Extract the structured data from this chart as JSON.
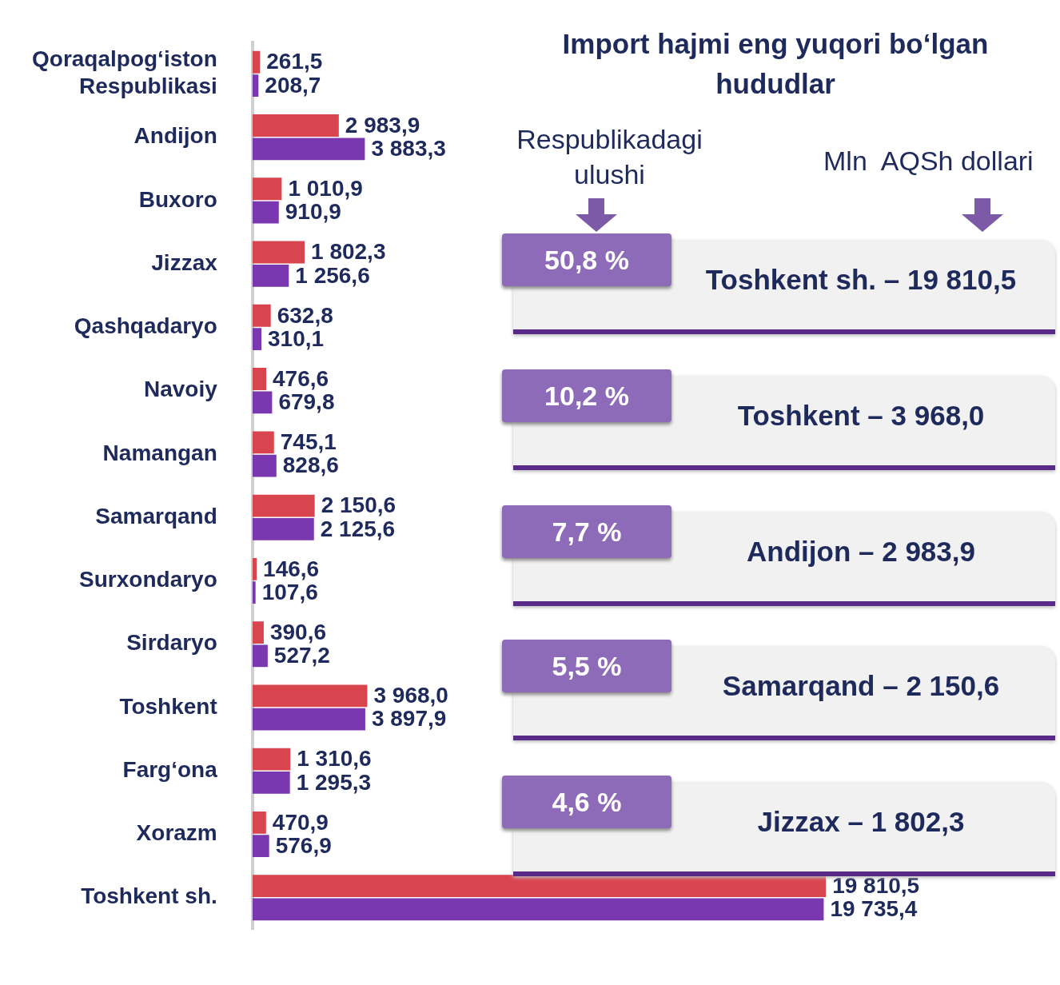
{
  "chart_data": {
    "type": "bar",
    "orientation": "horizontal",
    "title": "Import hajmi eng yuqori bo‘lgan hududlar",
    "categories": [
      "Qoraqalpog‘iston Respublikasi",
      "Andijon",
      "Buxoro",
      "Jizzax",
      "Qashqadaryo",
      "Navoiy",
      "Namangan",
      "Samarqand",
      "Surxondaryo",
      "Sirdaryo",
      "Toshkent",
      "Farg‘ona",
      "Xorazm",
      "Toshkent sh."
    ],
    "series": [
      {
        "color": "#d9454f",
        "values": [
          261.5,
          2983.9,
          1010.9,
          1802.3,
          632.8,
          476.6,
          745.1,
          2150.6,
          146.6,
          390.6,
          3968.0,
          1310.6,
          470.9,
          19810.5
        ],
        "value_labels": [
          "261,5",
          "2 983,9",
          "1 010,9",
          "1 802,3",
          "632,8",
          "476,6",
          "745,1",
          "2 150,6",
          "146,6",
          "390,6",
          "3 968,0",
          "1 310,6",
          "470,9",
          "19 810,5"
        ]
      },
      {
        "color": "#7a38b0",
        "values": [
          208.7,
          3883.3,
          910.9,
          1256.6,
          310.1,
          679.8,
          828.6,
          2125.6,
          107.6,
          527.2,
          3897.9,
          1295.3,
          576.9,
          19735.4
        ],
        "value_labels": [
          "208,7",
          "3 883,3",
          "910,9",
          "1 256,6",
          "310,1",
          "679,8",
          "828,6",
          "2 125,6",
          "107,6",
          "527,2",
          "3 897,9",
          "1 295,3",
          "576,9",
          "19 735,4"
        ]
      }
    ],
    "annotations": [
      "Respublikadagi ulushi",
      "Mln  AQSh dollari",
      "50,8 %",
      "Toshkent sh. – 19 810,5",
      "10,2 %",
      "Toshkent – 3 968,0",
      "7,7 %",
      "Andijon – 2 983,9",
      "5,5 %",
      "Samarqand – 2 150,6",
      "4,6 %",
      "Jizzax – 1 802,3"
    ],
    "legend": false
  }
}
